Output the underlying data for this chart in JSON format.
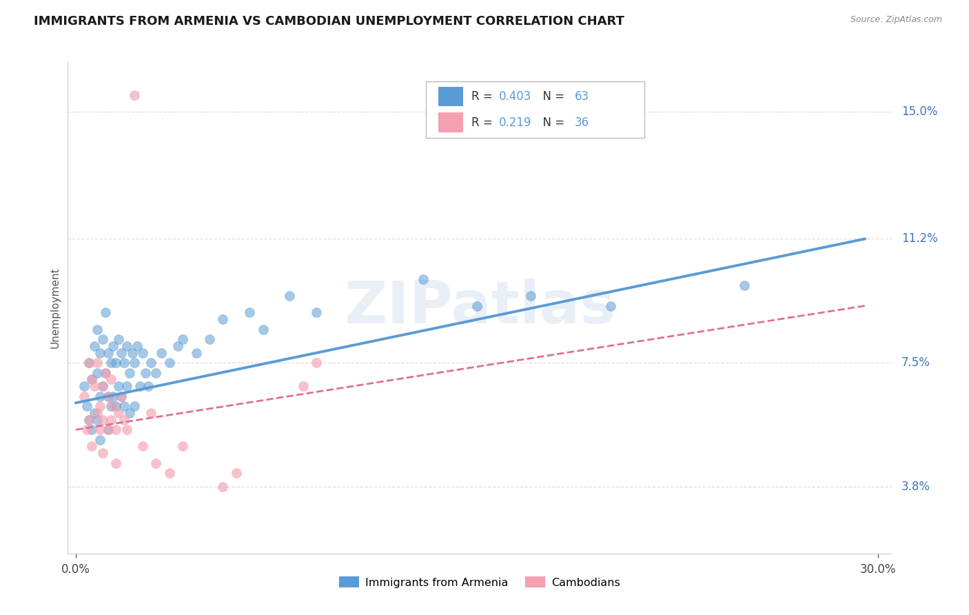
{
  "title": "IMMIGRANTS FROM ARMENIA VS CAMBODIAN UNEMPLOYMENT CORRELATION CHART",
  "source": "Source: ZipAtlas.com",
  "ylabel": "Unemployment",
  "xlim": [
    -0.003,
    0.305
  ],
  "ylim": [
    0.018,
    0.165
  ],
  "yticks": [
    0.038,
    0.075,
    0.112,
    0.15
  ],
  "ytick_labels": [
    "3.8%",
    "7.5%",
    "11.2%",
    "15.0%"
  ],
  "xtick_labels": [
    "0.0%",
    "30.0%"
  ],
  "blue_color": "#5B9BD5",
  "pink_color": "#F4A0B0",
  "pink_line_color": "#E07090",
  "blue_R": "0.403",
  "blue_N": "63",
  "pink_R": "0.219",
  "pink_N": "36",
  "legend_label_blue": "Immigrants from Armenia",
  "legend_label_pink": "Cambodians",
  "watermark": "ZIPatlas",
  "blue_scatter_x": [
    0.003,
    0.004,
    0.005,
    0.005,
    0.006,
    0.006,
    0.007,
    0.007,
    0.008,
    0.008,
    0.008,
    0.009,
    0.009,
    0.009,
    0.01,
    0.01,
    0.011,
    0.011,
    0.012,
    0.012,
    0.012,
    0.013,
    0.013,
    0.014,
    0.014,
    0.015,
    0.015,
    0.016,
    0.016,
    0.017,
    0.017,
    0.018,
    0.018,
    0.019,
    0.019,
    0.02,
    0.02,
    0.021,
    0.022,
    0.022,
    0.023,
    0.024,
    0.025,
    0.026,
    0.027,
    0.028,
    0.03,
    0.032,
    0.035,
    0.038,
    0.04,
    0.045,
    0.05,
    0.055,
    0.065,
    0.07,
    0.08,
    0.09,
    0.13,
    0.15,
    0.17,
    0.2,
    0.25
  ],
  "blue_scatter_y": [
    0.068,
    0.062,
    0.075,
    0.058,
    0.07,
    0.055,
    0.08,
    0.06,
    0.085,
    0.072,
    0.058,
    0.078,
    0.065,
    0.052,
    0.082,
    0.068,
    0.09,
    0.072,
    0.078,
    0.065,
    0.055,
    0.075,
    0.062,
    0.08,
    0.065,
    0.075,
    0.062,
    0.082,
    0.068,
    0.078,
    0.065,
    0.075,
    0.062,
    0.08,
    0.068,
    0.072,
    0.06,
    0.078,
    0.075,
    0.062,
    0.08,
    0.068,
    0.078,
    0.072,
    0.068,
    0.075,
    0.072,
    0.078,
    0.075,
    0.08,
    0.082,
    0.078,
    0.082,
    0.088,
    0.09,
    0.085,
    0.095,
    0.09,
    0.1,
    0.092,
    0.095,
    0.092,
    0.098
  ],
  "pink_scatter_x": [
    0.003,
    0.004,
    0.005,
    0.005,
    0.006,
    0.006,
    0.007,
    0.008,
    0.008,
    0.009,
    0.009,
    0.01,
    0.01,
    0.01,
    0.011,
    0.012,
    0.012,
    0.013,
    0.013,
    0.014,
    0.015,
    0.015,
    0.016,
    0.017,
    0.018,
    0.019,
    0.022,
    0.025,
    0.028,
    0.03,
    0.035,
    0.04,
    0.055,
    0.06,
    0.085,
    0.09
  ],
  "pink_scatter_y": [
    0.065,
    0.055,
    0.075,
    0.058,
    0.07,
    0.05,
    0.068,
    0.06,
    0.075,
    0.055,
    0.062,
    0.068,
    0.058,
    0.048,
    0.072,
    0.065,
    0.055,
    0.07,
    0.058,
    0.062,
    0.055,
    0.045,
    0.06,
    0.065,
    0.058,
    0.055,
    0.155,
    0.05,
    0.06,
    0.045,
    0.042,
    0.05,
    0.038,
    0.042,
    0.068,
    0.075
  ],
  "blue_trend_x": [
    0.0,
    0.295
  ],
  "blue_trend_y": [
    0.063,
    0.112
  ],
  "pink_trend_x": [
    0.0,
    0.295
  ],
  "pink_trend_y": [
    0.055,
    0.092
  ],
  "grid_color": "#dddddd",
  "bg_color": "#ffffff",
  "title_color": "#1a1a1a",
  "axis_label_color": "#555555",
  "tick_color": "#4472C4",
  "source_color": "#888888"
}
